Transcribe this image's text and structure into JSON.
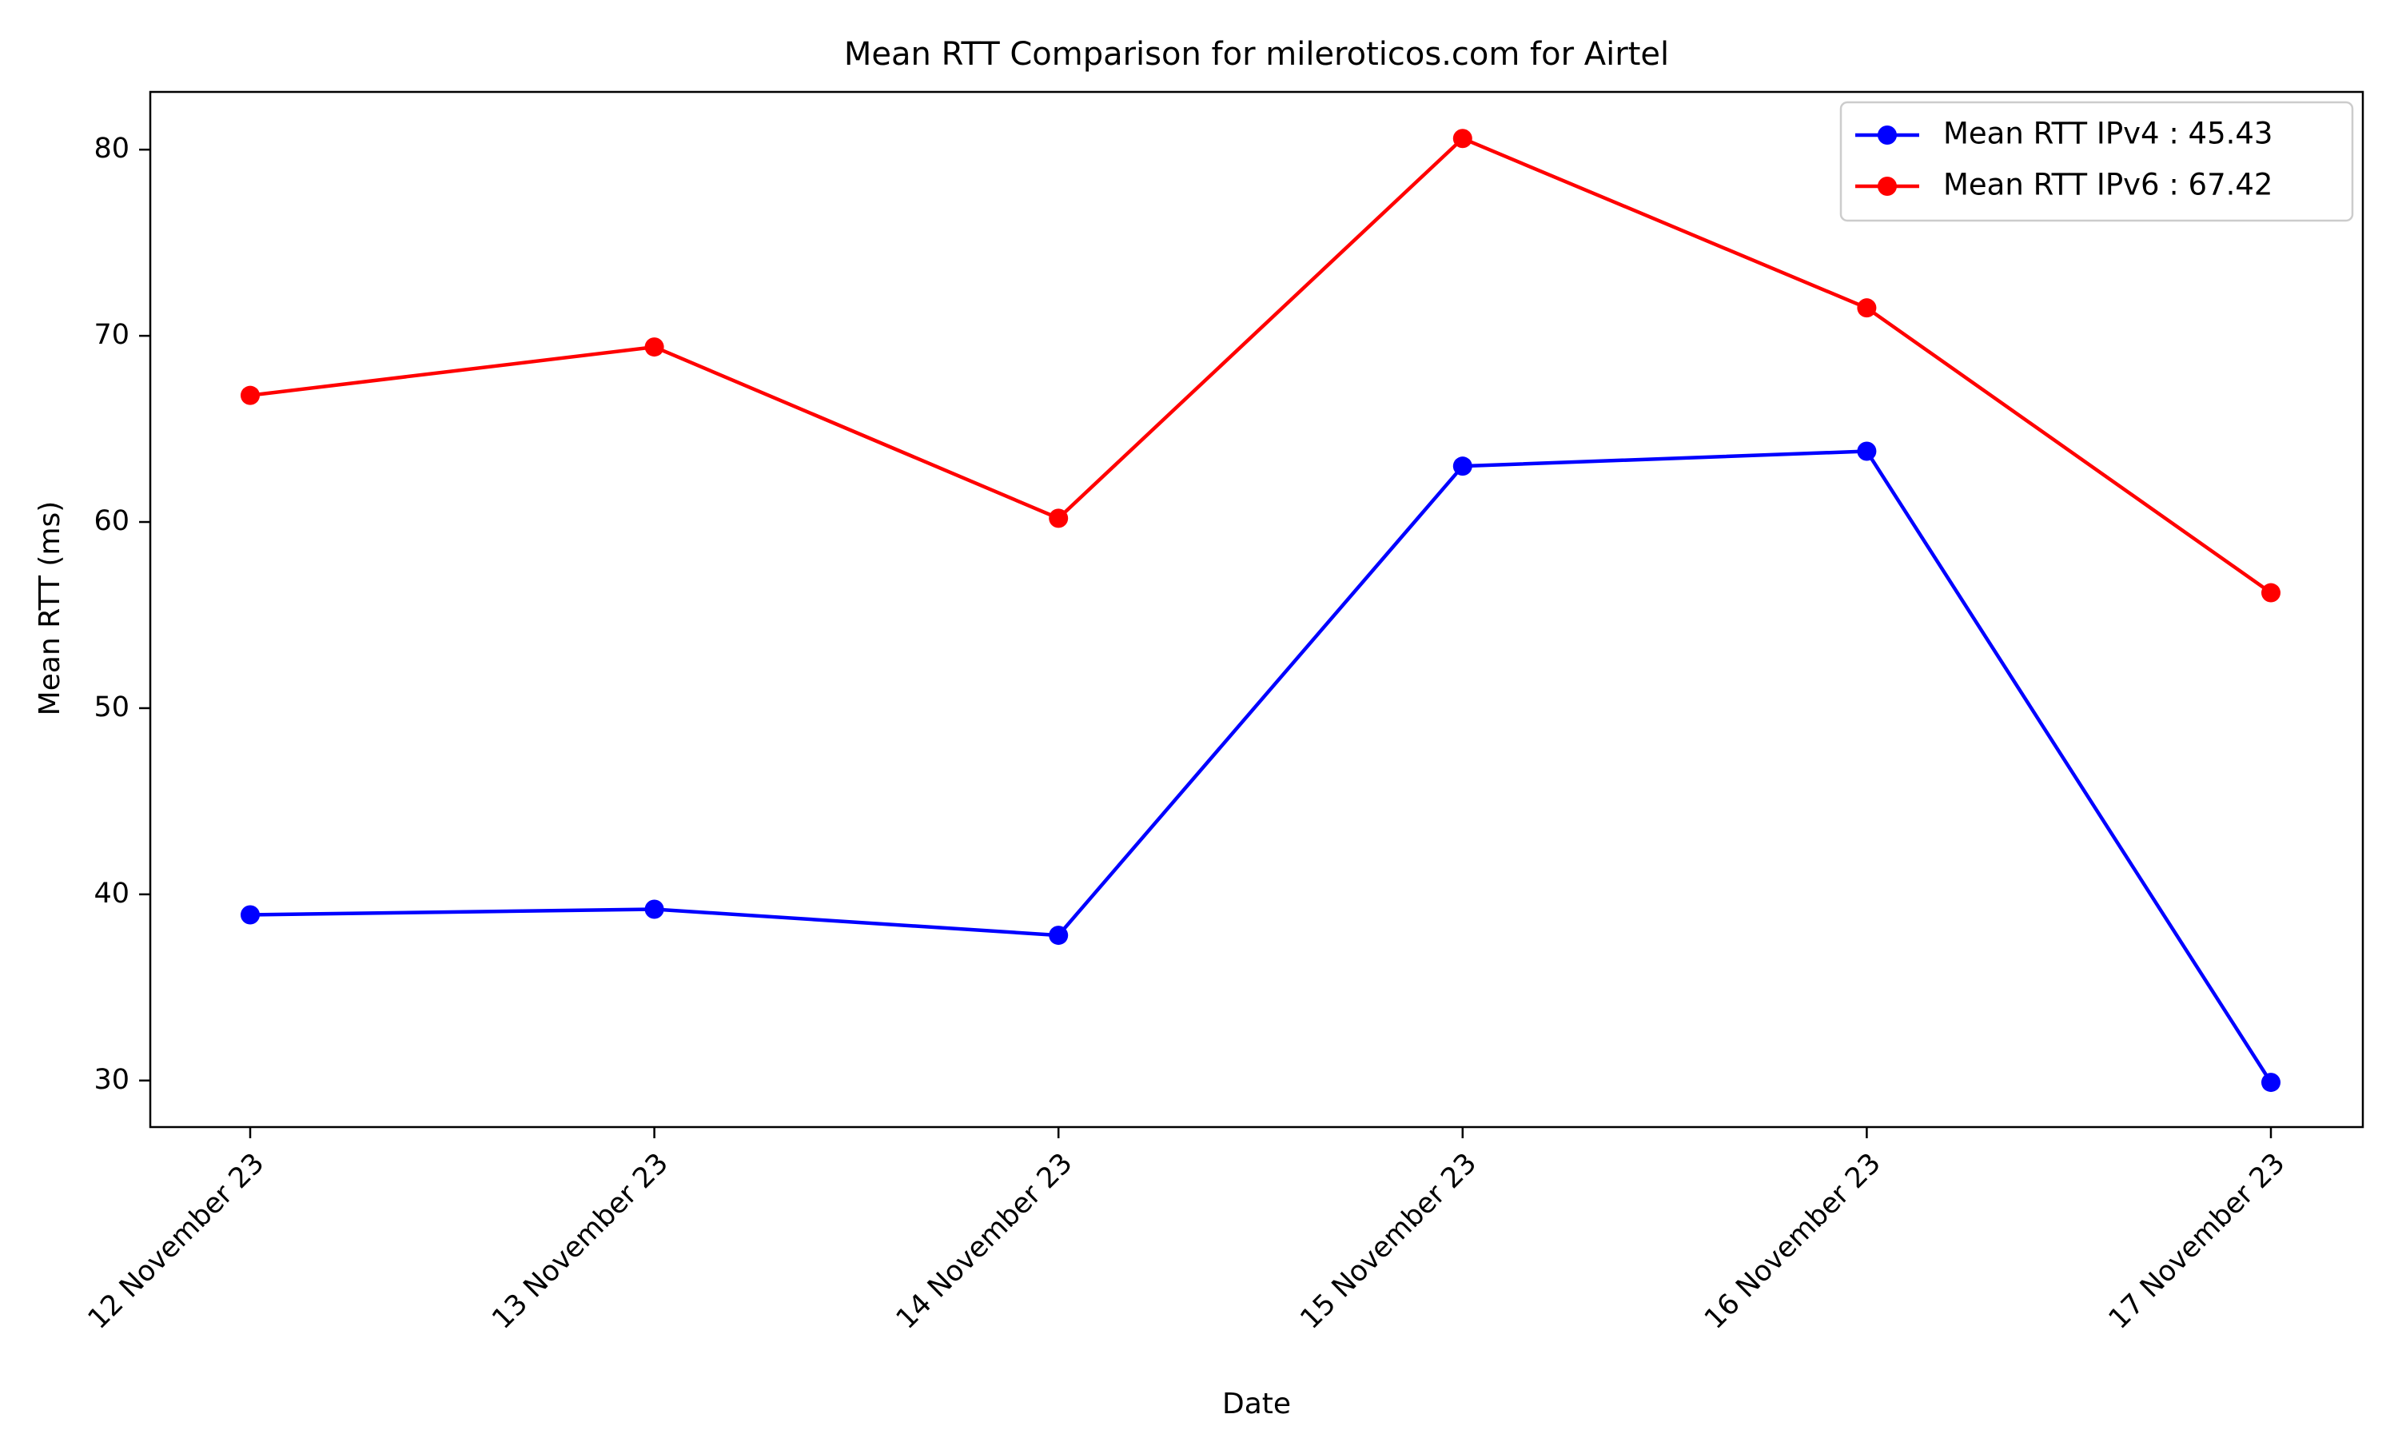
{
  "chart_data": {
    "type": "line",
    "title": "Mean RTT Comparison for mileroticos.com for Airtel",
    "xlabel": "Date",
    "ylabel": "Mean RTT (ms)",
    "categories": [
      "12 November 23",
      "13 November 23",
      "14 November 23",
      "15 November 23",
      "16 November 23",
      "17 November 23"
    ],
    "ylim": [
      27.5,
      83.1
    ],
    "yticks": [
      30,
      40,
      50,
      60,
      70,
      80
    ],
    "grid": false,
    "legend_position": "top-right",
    "series": [
      {
        "name": "Mean RTT IPv4 : 45.43",
        "color": "#0000ff",
        "marker": "circle",
        "values": [
          38.9,
          39.2,
          37.8,
          63.0,
          63.8,
          29.9
        ]
      },
      {
        "name": "Mean RTT IPv6 : 67.42",
        "color": "#ff0000",
        "marker": "circle",
        "values": [
          66.8,
          69.4,
          60.2,
          80.6,
          71.5,
          56.2
        ]
      }
    ]
  }
}
